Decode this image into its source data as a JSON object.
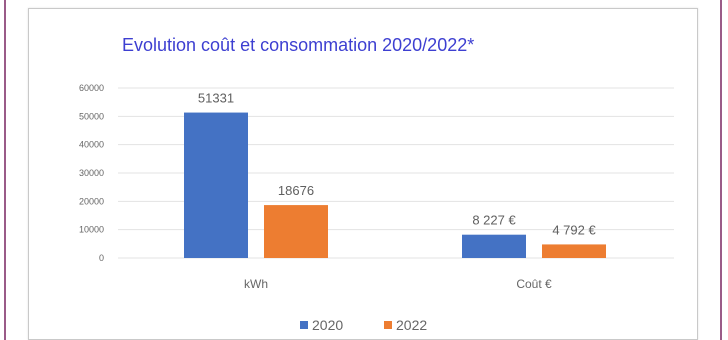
{
  "chart_data": {
    "type": "bar",
    "title": "Evolution coût et consommation 2020/2022*",
    "xlabel": "",
    "ylabel": "",
    "ylim": [
      0,
      60000
    ],
    "y_ticks": [
      "0",
      "10000",
      "20000",
      "30000",
      "40000",
      "50000",
      "60000"
    ],
    "categories": [
      "kWh",
      "Coût €"
    ],
    "series": [
      {
        "name": "2020",
        "values": [
          51331,
          8227
        ],
        "labels": [
          "51331",
          "8 227 €"
        ],
        "color": "#4472c4"
      },
      {
        "name": "2022",
        "values": [
          18676,
          4792
        ],
        "labels": [
          "18676",
          "4 792 €"
        ],
        "color": "#ed7d31"
      }
    ],
    "grid": true,
    "legend": "bottom",
    "colors": {
      "title": "#3d3fd1",
      "text": "#666666",
      "grid": "#e3e3e3",
      "frame": "#9a5b88"
    }
  }
}
